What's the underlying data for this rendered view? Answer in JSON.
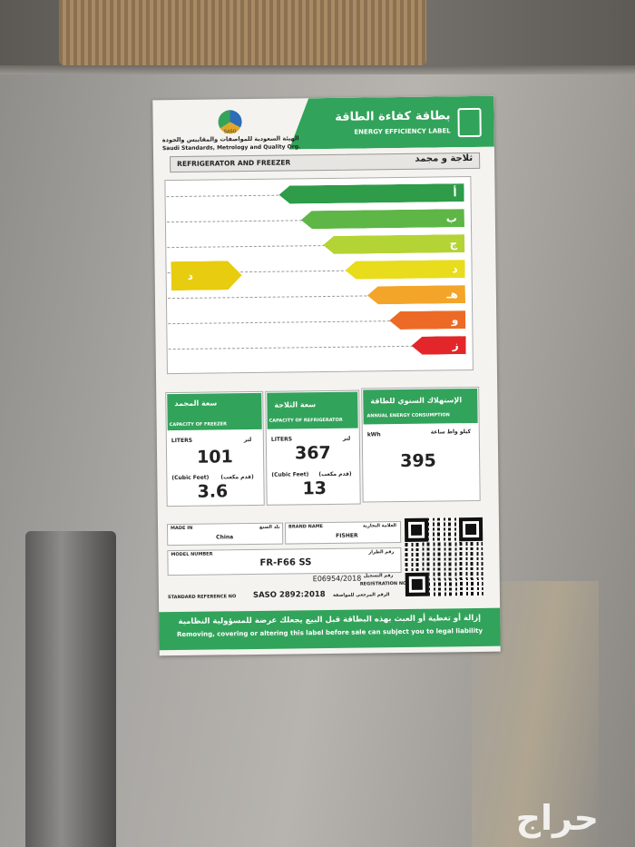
{
  "header": {
    "title_ar": "بطاقة كفاءة الطاقة",
    "title_en": "ENERGY EFFICIENCY LABEL",
    "logo": "SASO",
    "org_ar": "الهيئة السعودية للمواصفات والمقاييس والجودة",
    "org_en": "Saudi Standards, Metrology and Quality Org."
  },
  "product": {
    "en": "REFRIGERATOR AND FREEZER",
    "ar": "ثلاجة و مجمد"
  },
  "scale": {
    "classes": [
      "أ",
      "ب",
      "ج",
      "د",
      "هـ",
      "و",
      "ز"
    ],
    "rating": "د"
  },
  "freezer": {
    "title_ar": "سعة المجمد",
    "title_en": "CAPACITY OF FREEZER",
    "unit_en": "LITERS",
    "unit_ar": "لتر",
    "liters": 101,
    "cubic_en": "(Cubic Feet)",
    "cubic_ar": "(قدم مكعب)",
    "cubic_feet": 3.6
  },
  "refrigerator": {
    "title_ar": "سعة الثلاجة",
    "title_en": "CAPACITY OF REFRIGERATOR",
    "unit_en": "LITERS",
    "unit_ar": "لتر",
    "liters": 367,
    "cubic_en": "(Cubic Feet)",
    "cubic_ar": "(قدم مكعب)",
    "cubic_feet": 13
  },
  "energy": {
    "title_ar": "الإستهلاك السنوي للطاقة",
    "title_en": "ANNUAL ENERGY CONSUMPTION",
    "unit_en": "kWh",
    "unit_ar": "كيلو واط ساعة",
    "kwh": 395
  },
  "details": {
    "made_in": {
      "label_en": "MADE IN",
      "label_ar": "بلد الصنع",
      "value": "China"
    },
    "brand": {
      "label_en": "BRAND NAME",
      "label_ar": "العلامة التجارية",
      "value": "FISHER"
    },
    "model": {
      "label_en": "MODEL NUMBER",
      "label_ar": "رقم الطراز",
      "value": "FR-F66 SS"
    },
    "registration": {
      "value": "E06954/2018",
      "label_ar": "رقم التسجيل",
      "label_en": "REGISTRATION NO"
    },
    "standard": {
      "label_en": "STANDARD REFERENCE NO",
      "value": "SASO 2892:2018",
      "label_ar": "الرقم المرجعي للمواصفة"
    }
  },
  "footer": {
    "ar": "إزالة أو تغطية أو العبث بهذه البطاقة قبل البيع يجعلك عرضة للمسؤولية النظامية",
    "en": "Removing, covering or altering this label before sale can subject you to legal liability"
  },
  "watermark": "حراج"
}
